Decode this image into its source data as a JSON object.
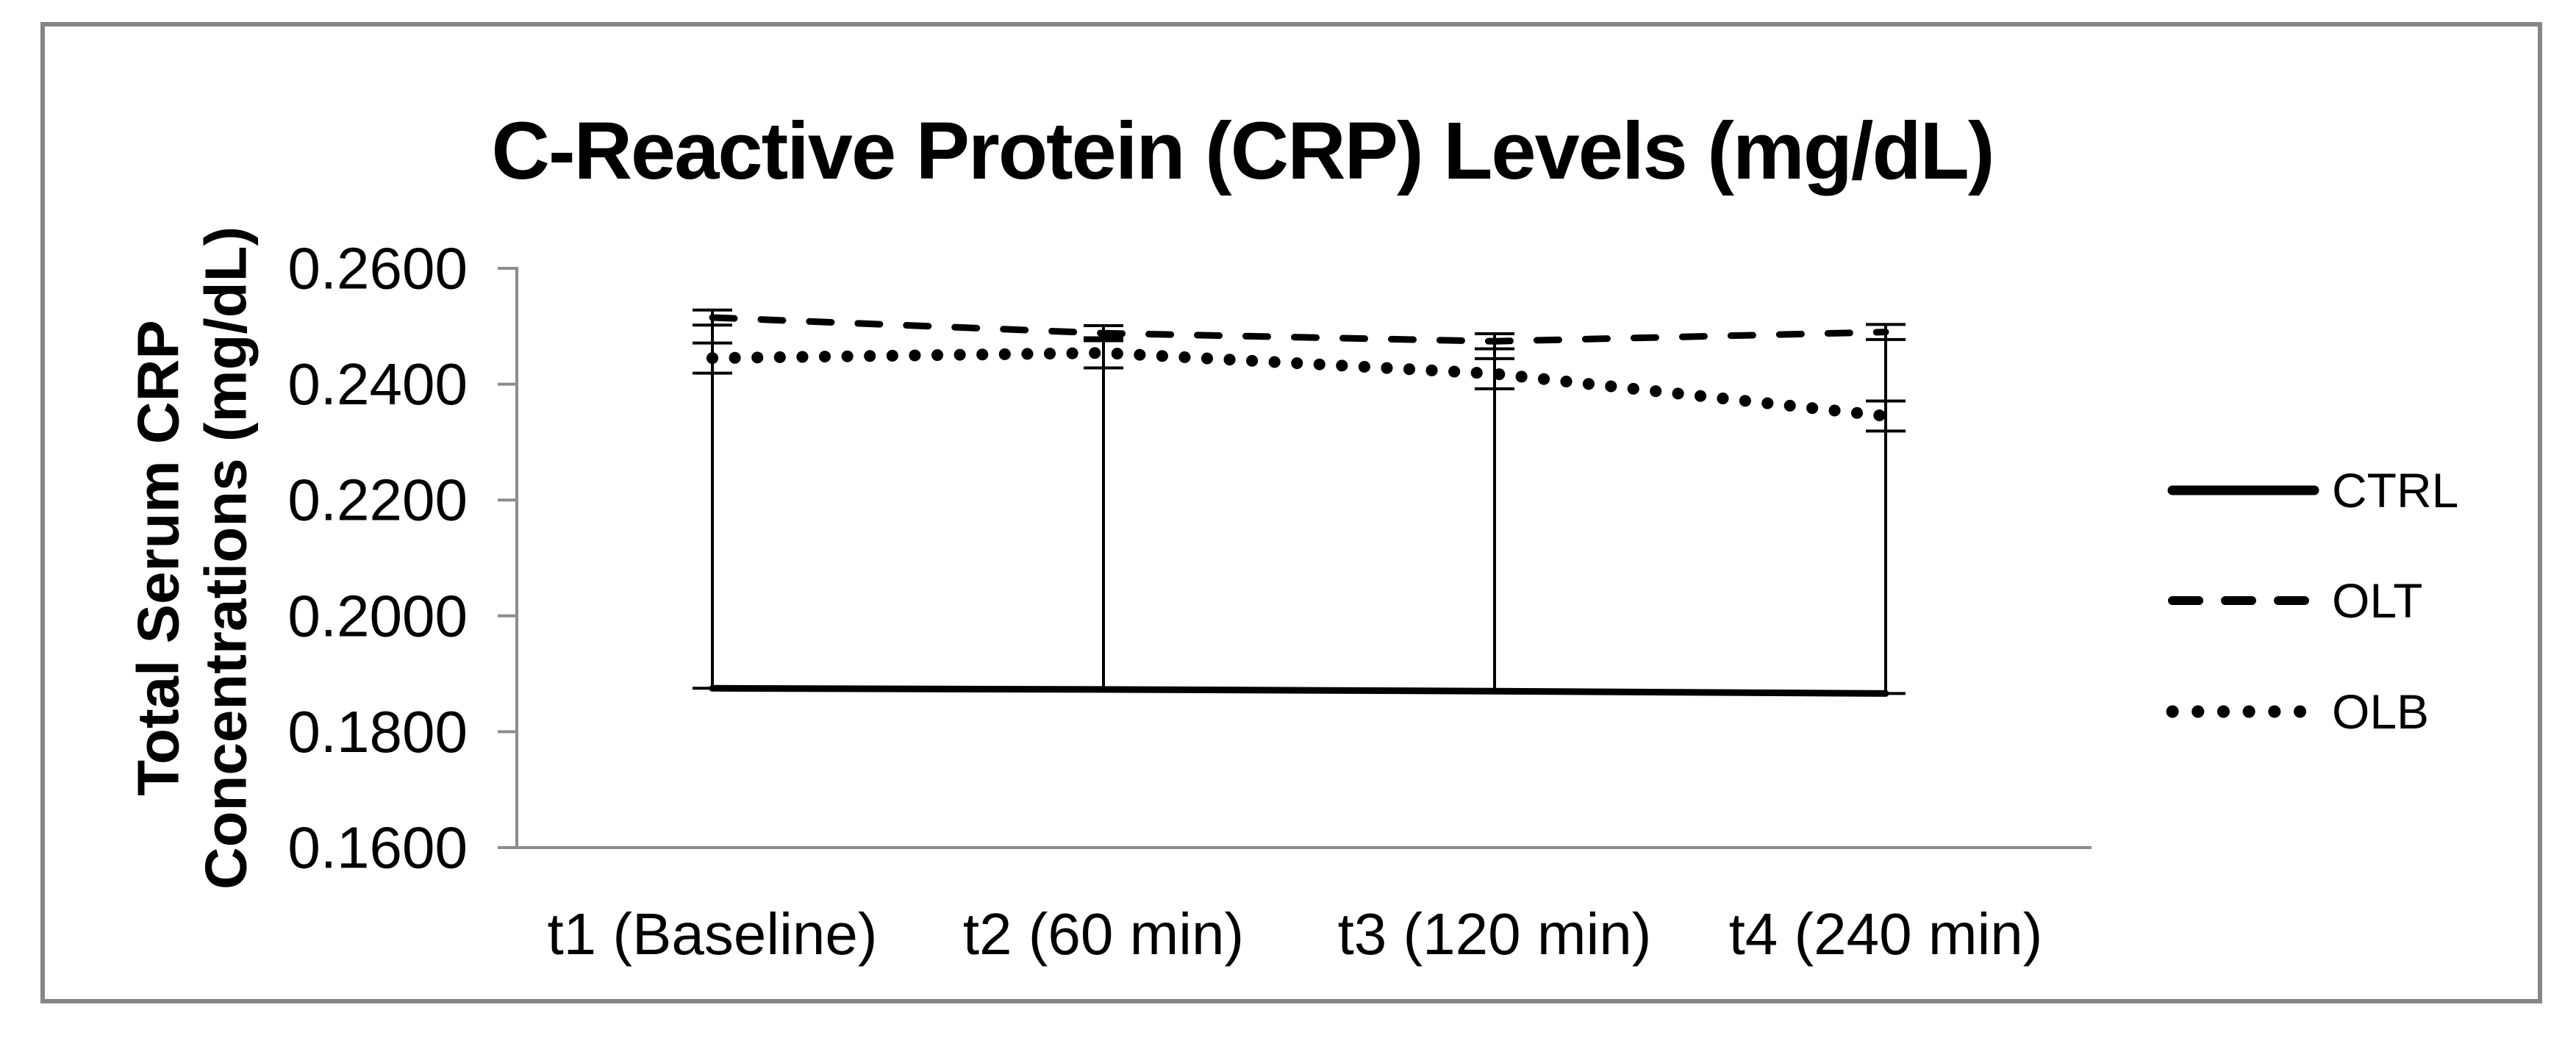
{
  "chart_data": {
    "type": "line",
    "title": "C-Reactive Protein (CRP) Levels (mg/dL)",
    "ylabel_line1": "Total Serum CRP",
    "ylabel_line2": "Concentrations (mg/dL)",
    "categories": [
      "t1 (Baseline)",
      "t2 (60 min)",
      "t3 (120 min)",
      "t4 (240 min)"
    ],
    "series": [
      {
        "name": "CTRL",
        "style": "solid",
        "values": [
          0.1875,
          0.1873,
          0.187,
          0.1866
        ],
        "error": 0.0008
      },
      {
        "name": "OLT",
        "style": "dashed",
        "values": [
          0.2515,
          0.2488,
          0.2474,
          0.249
        ],
        "error": 0.0013
      },
      {
        "name": "OLB",
        "style": "dotted",
        "values": [
          0.2445,
          0.2454,
          0.2418,
          0.2345
        ],
        "error": 0.0026
      }
    ],
    "ylim": [
      0.16,
      0.26
    ],
    "ytick_step": 0.02,
    "ytick_labels": [
      "0.2600",
      "0.2400",
      "0.2200",
      "0.2000",
      "0.1800",
      "0.1600"
    ],
    "legend_position": "right",
    "grid": "off",
    "high_low_lines": true,
    "colors": {
      "series": "#000000",
      "axis": "#8C8C8C",
      "border": "#868686",
      "background": "#FFFFFF",
      "text": "#000000"
    }
  }
}
